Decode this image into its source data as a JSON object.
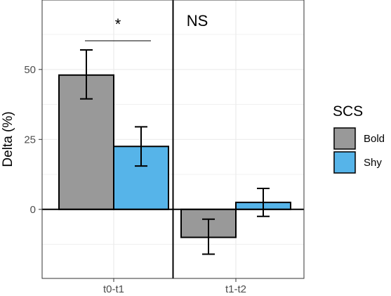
{
  "chart_data": {
    "type": "bar",
    "categories": [
      "t0-t1",
      "t1-t2"
    ],
    "ylabel": "Delta (%)",
    "xlabel": "",
    "ylim": [
      -25,
      66
    ],
    "yticks": [
      0,
      25,
      50
    ],
    "grid": true,
    "legend": {
      "title": "SCS",
      "position": "right"
    },
    "series": [
      {
        "name": "Bold",
        "color": "#999999",
        "values": [
          48,
          -10
        ],
        "error": [
          [
            39.5,
            57
          ],
          [
            -16,
            -3.5
          ]
        ]
      },
      {
        "name": "Shy",
        "color": "#56b4e9",
        "values": [
          22.5,
          2.5
        ],
        "error": [
          [
            15.5,
            29.5
          ],
          [
            -2.5,
            7.5
          ]
        ]
      }
    ],
    "annotations": [
      {
        "text": "*",
        "category": "t0-t1"
      },
      {
        "text": "NS",
        "category": "t1-t2"
      }
    ]
  }
}
